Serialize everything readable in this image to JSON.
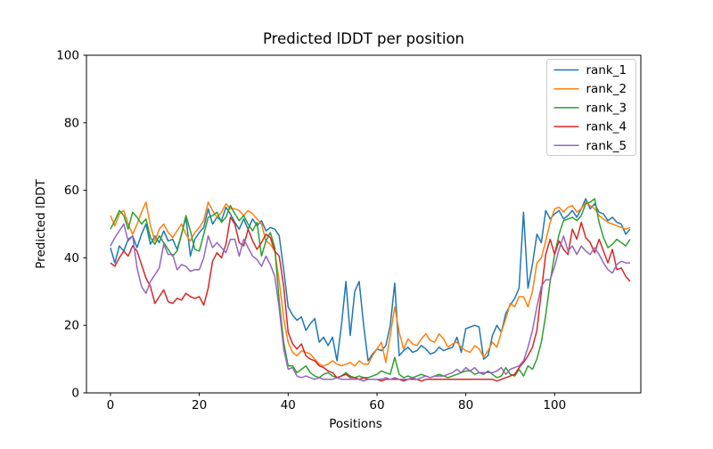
{
  "figure": {
    "background": "#ffffff",
    "text_color": "#000000",
    "spine_color": "#000000"
  },
  "chart_data": {
    "type": "line",
    "title": "Predicted lDDT per position",
    "xlabel": "Positions",
    "ylabel": "Predicted lDDT",
    "xlim": [
      -5.4,
      119.4
    ],
    "ylim": [
      0,
      100
    ],
    "xticks": [
      0,
      20,
      40,
      60,
      80,
      100
    ],
    "yticks": [
      0,
      20,
      40,
      60,
      80,
      100
    ],
    "grid": false,
    "n_points": 118,
    "x_start": 0,
    "x_step": 1,
    "legend": {
      "position": "upper right",
      "border_color": "#cccccc",
      "entries": [
        "rank_1",
        "rank_2",
        "rank_3",
        "rank_4",
        "rank_5"
      ]
    },
    "series": [
      {
        "name": "rank_1",
        "color": "#1f77b4",
        "values": [
          43,
          38.5,
          43.5,
          42,
          45.5,
          46.5,
          43,
          47,
          50,
          44,
          46.5,
          44.5,
          48,
          45,
          45.5,
          42.5,
          47,
          52,
          40.5,
          45.5,
          47.5,
          49,
          54.5,
          50,
          52,
          51,
          55,
          53,
          50.5,
          48.5,
          51.5,
          48.5,
          51.5,
          49.5,
          51,
          48,
          49,
          48.5,
          46.5,
          36.5,
          25.5,
          23,
          21.5,
          22.5,
          18.5,
          20.5,
          22,
          15,
          16.5,
          14,
          16.5,
          9.5,
          20,
          33,
          17,
          30,
          33,
          20,
          9.5,
          11.5,
          13,
          12.5,
          14,
          20,
          32.5,
          11,
          12.5,
          13.5,
          12,
          12.5,
          14,
          13,
          11.5,
          12,
          13.5,
          12.5,
          13,
          13.5,
          16.5,
          12,
          19,
          19.5,
          20,
          19.5,
          10,
          11,
          17,
          20,
          18,
          23.5,
          26,
          28,
          31,
          53.5,
          31,
          38,
          47,
          44.5,
          54,
          51.5,
          53,
          54,
          51.5,
          52.5,
          54,
          52,
          54.5,
          57.5,
          54.5,
          56,
          53.5,
          53,
          51,
          52,
          50.5,
          50,
          47,
          48.5
        ]
      },
      {
        "name": "rank_2",
        "color": "#ff7f0e",
        "values": [
          52.5,
          49.5,
          53,
          54,
          50,
          47,
          50,
          53.5,
          56.5,
          49.5,
          45,
          48.5,
          50,
          47.5,
          46,
          48,
          50,
          47,
          45,
          47.5,
          49,
          51,
          56.5,
          54,
          52,
          53.5,
          56,
          54.5,
          54.5,
          54,
          52.5,
          54,
          53,
          51.5,
          50,
          45,
          44,
          42,
          33,
          22,
          15,
          12,
          11,
          12.5,
          12,
          11.5,
          10,
          8.5,
          8,
          8.5,
          9.5,
          8.5,
          8,
          8.5,
          9,
          8,
          9.5,
          8.5,
          8.5,
          11,
          13,
          15,
          9,
          17,
          25.5,
          18,
          13,
          16,
          14.5,
          14,
          16,
          17.5,
          15.5,
          15,
          17.5,
          16,
          13.5,
          14.5,
          15,
          13.5,
          12.5,
          12,
          14,
          13,
          10.5,
          12.5,
          15,
          13.5,
          18,
          22,
          26.5,
          25.5,
          28.5,
          28.5,
          25.5,
          30,
          38.5,
          40,
          45,
          50.5,
          54.5,
          55,
          53.5,
          55,
          55.5,
          53.5,
          54.5,
          56.5,
          55.5,
          54.5,
          52.5,
          51.5,
          50.5,
          50,
          49.5,
          49,
          48.5,
          49
        ]
      },
      {
        "name": "rank_3",
        "color": "#2ca02c",
        "values": [
          48.5,
          51,
          54,
          52.5,
          48.5,
          53.5,
          52,
          50,
          51.5,
          46,
          44,
          46.5,
          44.5,
          42.5,
          40.5,
          42,
          47,
          52.5,
          48,
          42.5,
          42,
          47,
          52,
          52.5,
          53.5,
          50.5,
          52,
          55.5,
          53,
          51,
          52.5,
          50,
          48,
          50.5,
          40.5,
          45,
          47.5,
          43,
          27,
          15,
          8,
          8,
          6,
          7,
          8,
          6,
          5,
          4.5,
          5.5,
          6,
          5,
          4.5,
          5,
          6,
          5,
          4.5,
          5,
          4.5,
          4.5,
          5,
          5.5,
          6.5,
          6,
          5.5,
          10.5,
          5.5,
          4.5,
          5,
          4.5,
          5,
          5.5,
          5,
          4.5,
          5,
          5.5,
          5,
          4.5,
          5,
          5.5,
          6,
          6.5,
          6.5,
          5.5,
          6,
          5.5,
          6.5,
          5.5,
          4.5,
          5,
          7.5,
          5.5,
          5,
          7,
          5,
          8,
          7,
          10,
          15,
          23,
          33,
          41,
          47,
          51,
          51.5,
          52,
          51,
          52.5,
          56,
          56.5,
          57.5,
          50.5,
          46,
          43,
          44,
          45.5,
          44.5,
          43.5,
          45.5
        ]
      },
      {
        "name": "rank_4",
        "color": "#d62728",
        "values": [
          38.5,
          37.5,
          40,
          42,
          40.5,
          43.5,
          42,
          38,
          34,
          31.5,
          26.5,
          28.5,
          30.5,
          27,
          26.5,
          28,
          27.5,
          29.5,
          28.5,
          28,
          28.5,
          26,
          31,
          39,
          41.5,
          40,
          44,
          52,
          50,
          44.5,
          43.5,
          48.5,
          45,
          42.5,
          44.5,
          47,
          46,
          42,
          40.5,
          31.5,
          18,
          14.5,
          13,
          14.5,
          11,
          10,
          9.5,
          8,
          7.5,
          6.5,
          6,
          4.5,
          5,
          5.5,
          4.5,
          4.5,
          4,
          4.5,
          4,
          4,
          4,
          3.5,
          4,
          4,
          4,
          4,
          3.5,
          4,
          4,
          4,
          3.5,
          4,
          4,
          4,
          4,
          4,
          4,
          4,
          4,
          4,
          4,
          4,
          4,
          4,
          4,
          4,
          4,
          3.5,
          4,
          4.5,
          5,
          5.5,
          7.5,
          9,
          11,
          13.5,
          18.5,
          30,
          41,
          45.5,
          41,
          45,
          42.5,
          41,
          48.5,
          45.5,
          50.5,
          46,
          44.5,
          41.5,
          45.5,
          42,
          38.5,
          42.5,
          36.5,
          37,
          34.5,
          33
        ]
      },
      {
        "name": "rank_5",
        "color": "#9467bd",
        "values": [
          43.5,
          46,
          48,
          50,
          45,
          46.5,
          37,
          31.5,
          29.5,
          33,
          35,
          37,
          44,
          41,
          41,
          36.5,
          38,
          37.5,
          36,
          36.5,
          36.5,
          40,
          46.5,
          43,
          44.5,
          43,
          41.5,
          45.5,
          45.5,
          40.5,
          45.5,
          43,
          40.5,
          39.5,
          37.5,
          40.5,
          38,
          34.5,
          25,
          13,
          7,
          7.5,
          5,
          4.5,
          5,
          4.5,
          4,
          4.5,
          4,
          4,
          4,
          4.5,
          4,
          4,
          4,
          4,
          4,
          3.5,
          4,
          4,
          4,
          4,
          4.5,
          4,
          4.5,
          4,
          4,
          4,
          4.5,
          4,
          4.5,
          5,
          4.5,
          5,
          5,
          5,
          5.5,
          6,
          7,
          6,
          7.5,
          6.5,
          7.5,
          6,
          6,
          6,
          6,
          6.5,
          7.5,
          5.5,
          7,
          7.5,
          8,
          9.5,
          13.5,
          18.5,
          25.5,
          31.5,
          33.5,
          33.5,
          37.5,
          42.5,
          46.5,
          42,
          43.5,
          41,
          43.5,
          42,
          41,
          43,
          41,
          38.5,
          36.5,
          35.5,
          38,
          39,
          38.5,
          38.5
        ]
      }
    ]
  }
}
